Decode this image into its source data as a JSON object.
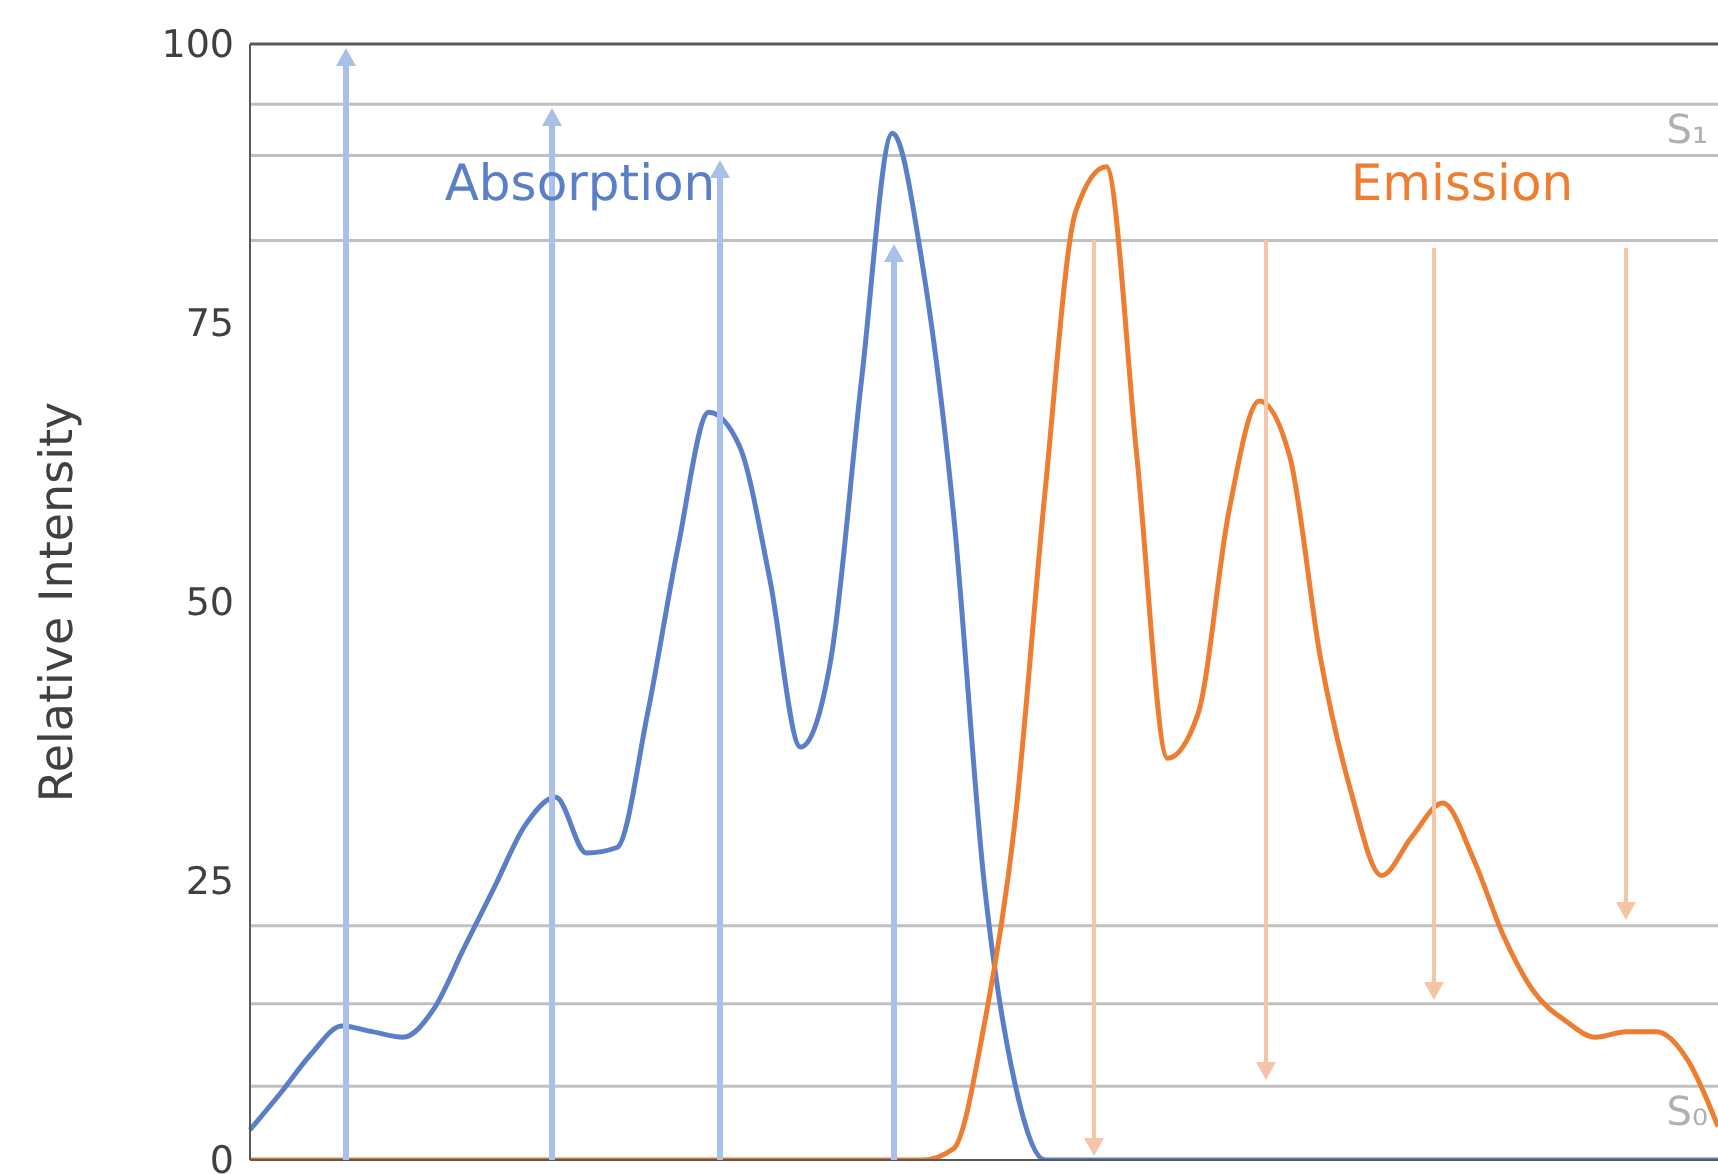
{
  "chart_data": {
    "type": "line",
    "ylabel": "Relative Intensity",
    "categories": [
      null,
      null,
      null,
      null,
      null,
      null,
      null,
      null,
      null,
      null,
      null,
      null,
      null,
      null,
      null,
      null,
      null,
      null,
      null,
      null,
      null,
      null,
      null,
      null,
      null,
      null,
      null,
      null,
      null,
      null,
      null,
      null,
      null,
      null,
      null,
      null,
      null,
      null,
      null,
      null,
      null,
      null,
      null,
      null,
      null,
      null,
      null,
      null,
      null
    ],
    "series": [
      {
        "name": "Absorption",
        "color": "#5b7fc7",
        "values": [
          2.7,
          6,
          9.5,
          12,
          11.5,
          11,
          13.5,
          19,
          24.5,
          30,
          32.5,
          27.5,
          28,
          40,
          55,
          67,
          64,
          52,
          37,
          45,
          70,
          92,
          80,
          58,
          25,
          7,
          0,
          0,
          0,
          0,
          0,
          0,
          0,
          0,
          0,
          0,
          0,
          0,
          0,
          0,
          0,
          0,
          0,
          0,
          0,
          0,
          0,
          0,
          0
        ]
      },
      {
        "name": "Emission",
        "color": "#ed7d31",
        "values": [
          0,
          0,
          0,
          0,
          0,
          0,
          0,
          0,
          0,
          0,
          0,
          0,
          0,
          0,
          0,
          0,
          0,
          0,
          0,
          0,
          0,
          0,
          0,
          1,
          12,
          30,
          60,
          85,
          89,
          63,
          36,
          40,
          58,
          68,
          63,
          45,
          33,
          25.5,
          29,
          32,
          27,
          20,
          15,
          12.5,
          11,
          11.5,
          11.5,
          9,
          3
        ]
      }
    ],
    "ylim": [
      0,
      100
    ],
    "yticks": [
      0,
      25,
      50,
      75,
      100
    ],
    "grid": false,
    "legend": false,
    "marker": "none",
    "ref_lines": [
      {
        "axis": "y",
        "value": 94.6,
        "label": "S₁",
        "color": "#c0c0c0"
      },
      {
        "axis": "y",
        "value": 90,
        "label": null,
        "color": "#c0c0c0"
      },
      {
        "axis": "y",
        "value": 82.4,
        "label": null,
        "color": "#c0c0c0"
      },
      {
        "axis": "y",
        "value": 21,
        "label": null,
        "color": "#c0c0c0"
      },
      {
        "axis": "y",
        "value": 14,
        "label": null,
        "color": "#c0c0c0"
      },
      {
        "axis": "y",
        "value": 6.6,
        "label": "S₀",
        "color": "#c0c0c0"
      }
    ]
  }
}
